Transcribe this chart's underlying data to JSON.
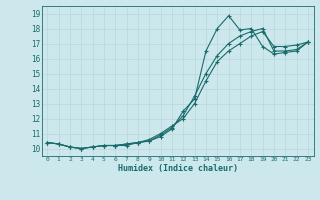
{
  "title": "",
  "xlabel": "Humidex (Indice chaleur)",
  "ylabel": "",
  "xlim": [
    -0.5,
    23.5
  ],
  "ylim": [
    9.5,
    19.5
  ],
  "xticks": [
    0,
    1,
    2,
    3,
    4,
    5,
    6,
    7,
    8,
    9,
    10,
    11,
    12,
    13,
    14,
    15,
    16,
    17,
    18,
    19,
    20,
    21,
    22,
    23
  ],
  "yticks": [
    10,
    11,
    12,
    13,
    14,
    15,
    16,
    17,
    18,
    19
  ],
  "bg_color": "#cce8ec",
  "line_color": "#1a6b6b",
  "grid_color": "#b8d8dc",
  "series1_x": [
    0,
    1,
    2,
    3,
    4,
    5,
    6,
    7,
    8,
    9,
    10,
    11,
    12,
    13,
    14,
    15,
    16,
    17,
    18,
    19,
    20,
    21,
    22,
    23
  ],
  "series1_y": [
    10.4,
    10.3,
    10.1,
    10.0,
    10.1,
    10.2,
    10.2,
    10.2,
    10.4,
    10.5,
    10.8,
    11.3,
    12.5,
    13.3,
    16.5,
    18.0,
    18.85,
    17.9,
    18.0,
    16.8,
    16.3,
    16.4,
    16.5,
    17.1
  ],
  "series2_x": [
    0,
    1,
    2,
    3,
    4,
    5,
    6,
    7,
    8,
    9,
    10,
    11,
    12,
    13,
    14,
    15,
    16,
    17,
    18,
    19,
    20,
    21,
    22,
    23
  ],
  "series2_y": [
    10.4,
    10.3,
    10.1,
    10.0,
    10.1,
    10.2,
    10.2,
    10.3,
    10.4,
    10.5,
    10.9,
    11.4,
    12.2,
    13.5,
    15.0,
    16.2,
    17.0,
    17.5,
    17.8,
    18.0,
    16.5,
    16.5,
    16.6,
    17.1
  ],
  "series3_x": [
    0,
    1,
    2,
    3,
    4,
    5,
    6,
    7,
    8,
    9,
    10,
    11,
    12,
    13,
    14,
    15,
    16,
    17,
    18,
    19,
    20,
    21,
    22,
    23
  ],
  "series3_y": [
    10.4,
    10.3,
    10.1,
    10.0,
    10.1,
    10.2,
    10.2,
    10.3,
    10.4,
    10.6,
    11.0,
    11.5,
    12.0,
    13.0,
    14.5,
    15.8,
    16.5,
    17.0,
    17.5,
    17.8,
    16.8,
    16.8,
    16.9,
    17.1
  ]
}
